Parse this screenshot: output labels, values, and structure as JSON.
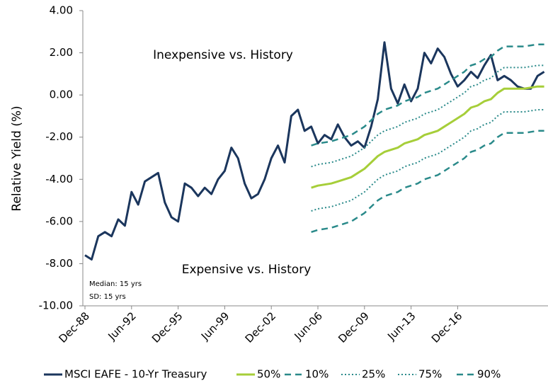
{
  "chart_data": {
    "type": "line",
    "y_label": "Relative Yield (%)",
    "annotations": [
      "Inexpensive vs. History",
      "Expensive vs. History",
      "Median: 15 yrs",
      "SD: 15 yrs"
    ],
    "categories": [
      "Dec-88",
      null,
      null,
      null,
      null,
      null,
      null,
      "Jun-92",
      null,
      null,
      null,
      null,
      null,
      null,
      "Dec-95",
      null,
      null,
      null,
      null,
      null,
      null,
      "Jun-99",
      null,
      null,
      null,
      null,
      null,
      null,
      "Dec-02",
      null,
      null,
      null,
      null,
      null,
      null,
      "Jun-06",
      null,
      null,
      null,
      null,
      null,
      null,
      "Dec-09",
      null,
      null,
      null,
      null,
      null,
      null,
      "Jun-13",
      null,
      null,
      null,
      null,
      null,
      null,
      "Dec-16",
      null,
      null,
      null,
      null,
      null,
      null,
      null,
      null,
      null,
      null,
      null,
      null,
      null
    ],
    "ylim": [
      -10,
      4
    ],
    "yticks": [
      {
        "value": -10,
        "label": "-10.00"
      },
      {
        "value": -8,
        "label": "-8.00"
      },
      {
        "value": -6,
        "label": "-6.00"
      },
      {
        "value": -4,
        "label": "-4.00"
      },
      {
        "value": -2,
        "label": "-2.00"
      },
      {
        "value": 0,
        "label": "0.00"
      },
      {
        "value": 2,
        "label": "2.00"
      },
      {
        "value": 4,
        "label": "4.00"
      }
    ],
    "grid": false,
    "legend": "bottom",
    "series": [
      {
        "name": "MSCI EAFE - 10-Yr Treasury",
        "color": "#1b365d",
        "style": "solid",
        "width": 3,
        "values": [
          -7.6,
          -7.8,
          -6.7,
          -6.5,
          -6.7,
          -5.9,
          -6.2,
          -4.6,
          -5.2,
          -4.1,
          -3.9,
          -3.7,
          -5.1,
          -5.8,
          -6.0,
          -4.2,
          -4.4,
          -4.8,
          -4.4,
          -4.7,
          -4.0,
          -3.6,
          -2.5,
          -3.0,
          -4.2,
          -4.9,
          -4.7,
          -4.0,
          -3.0,
          -2.4,
          -3.2,
          -1.0,
          -0.7,
          -1.7,
          -1.5,
          -2.3,
          -1.9,
          -2.1,
          -1.4,
          -2.0,
          -2.4,
          -2.2,
          -2.5,
          -1.5,
          -0.2,
          2.5,
          0.3,
          -0.4,
          0.5,
          -0.3,
          0.3,
          2.0,
          1.5,
          2.2,
          1.8,
          1.0,
          0.4,
          0.7,
          1.1,
          0.8,
          1.4,
          1.9,
          0.7,
          0.9,
          0.7,
          0.4,
          0.3,
          0.3,
          0.9,
          1.1
        ]
      },
      {
        "name": "50%",
        "color": "#a6ce39",
        "style": "solid",
        "width": 3,
        "values": [
          null,
          null,
          null,
          null,
          null,
          null,
          null,
          null,
          null,
          null,
          null,
          null,
          null,
          null,
          null,
          null,
          null,
          null,
          null,
          null,
          null,
          null,
          null,
          null,
          null,
          null,
          null,
          null,
          null,
          null,
          null,
          null,
          null,
          null,
          -4.4,
          -4.3,
          -4.25,
          -4.2,
          -4.1,
          -4.0,
          -3.9,
          -3.7,
          -3.5,
          -3.2,
          -2.9,
          -2.7,
          -2.6,
          -2.5,
          -2.3,
          -2.2,
          -2.1,
          -1.9,
          -1.8,
          -1.7,
          -1.5,
          -1.3,
          -1.1,
          -0.9,
          -0.6,
          -0.5,
          -0.3,
          -0.2,
          0.1,
          0.3,
          0.3,
          0.3,
          0.3,
          0.35,
          0.4,
          0.4
        ]
      },
      {
        "name": "10%",
        "color": "#2a8a8a",
        "style": "dashed",
        "width": 2.5,
        "values": [
          null,
          null,
          null,
          null,
          null,
          null,
          null,
          null,
          null,
          null,
          null,
          null,
          null,
          null,
          null,
          null,
          null,
          null,
          null,
          null,
          null,
          null,
          null,
          null,
          null,
          null,
          null,
          null,
          null,
          null,
          null,
          null,
          null,
          null,
          -6.5,
          -6.4,
          -6.35,
          -6.3,
          -6.2,
          -6.1,
          -6.0,
          -5.8,
          -5.6,
          -5.3,
          -5.0,
          -4.8,
          -4.7,
          -4.6,
          -4.4,
          -4.3,
          -4.2,
          -4.0,
          -3.9,
          -3.8,
          -3.6,
          -3.4,
          -3.2,
          -3.0,
          -2.7,
          -2.6,
          -2.4,
          -2.3,
          -2.0,
          -1.8,
          -1.8,
          -1.8,
          -1.8,
          -1.75,
          -1.7,
          -1.7
        ]
      },
      {
        "name": "25%",
        "color": "#2a8a8a",
        "style": "dotted",
        "width": 2,
        "values": [
          null,
          null,
          null,
          null,
          null,
          null,
          null,
          null,
          null,
          null,
          null,
          null,
          null,
          null,
          null,
          null,
          null,
          null,
          null,
          null,
          null,
          null,
          null,
          null,
          null,
          null,
          null,
          null,
          null,
          null,
          null,
          null,
          null,
          null,
          -5.5,
          -5.4,
          -5.35,
          -5.3,
          -5.2,
          -5.1,
          -5.0,
          -4.8,
          -4.6,
          -4.3,
          -4.0,
          -3.8,
          -3.7,
          -3.6,
          -3.4,
          -3.3,
          -3.2,
          -3.0,
          -2.9,
          -2.8,
          -2.6,
          -2.4,
          -2.2,
          -2.0,
          -1.7,
          -1.6,
          -1.4,
          -1.3,
          -1.0,
          -0.8,
          -0.8,
          -0.8,
          -0.8,
          -0.75,
          -0.7,
          -0.7
        ]
      },
      {
        "name": "75%",
        "color": "#2a8a8a",
        "style": "dotted",
        "width": 2,
        "values": [
          null,
          null,
          null,
          null,
          null,
          null,
          null,
          null,
          null,
          null,
          null,
          null,
          null,
          null,
          null,
          null,
          null,
          null,
          null,
          null,
          null,
          null,
          null,
          null,
          null,
          null,
          null,
          null,
          null,
          null,
          null,
          null,
          null,
          null,
          -3.4,
          -3.3,
          -3.25,
          -3.2,
          -3.1,
          -3.0,
          -2.9,
          -2.7,
          -2.5,
          -2.2,
          -1.9,
          -1.7,
          -1.6,
          -1.5,
          -1.3,
          -1.2,
          -1.1,
          -0.9,
          -0.8,
          -0.7,
          -0.5,
          -0.3,
          -0.1,
          0.1,
          0.4,
          0.5,
          0.7,
          0.8,
          1.1,
          1.3,
          1.3,
          1.3,
          1.3,
          1.35,
          1.4,
          1.4
        ]
      },
      {
        "name": "90%",
        "color": "#2a8a8a",
        "style": "dashed",
        "width": 2.5,
        "values": [
          null,
          null,
          null,
          null,
          null,
          null,
          null,
          null,
          null,
          null,
          null,
          null,
          null,
          null,
          null,
          null,
          null,
          null,
          null,
          null,
          null,
          null,
          null,
          null,
          null,
          null,
          null,
          null,
          null,
          null,
          null,
          null,
          null,
          null,
          -2.4,
          -2.3,
          -2.25,
          -2.2,
          -2.1,
          -2.0,
          -1.9,
          -1.7,
          -1.5,
          -1.2,
          -0.9,
          -0.7,
          -0.6,
          -0.5,
          -0.3,
          -0.2,
          -0.1,
          0.1,
          0.2,
          0.3,
          0.5,
          0.7,
          0.9,
          1.1,
          1.4,
          1.5,
          1.7,
          1.8,
          2.1,
          2.3,
          2.3,
          2.3,
          2.3,
          2.35,
          2.4,
          2.4
        ]
      }
    ]
  }
}
